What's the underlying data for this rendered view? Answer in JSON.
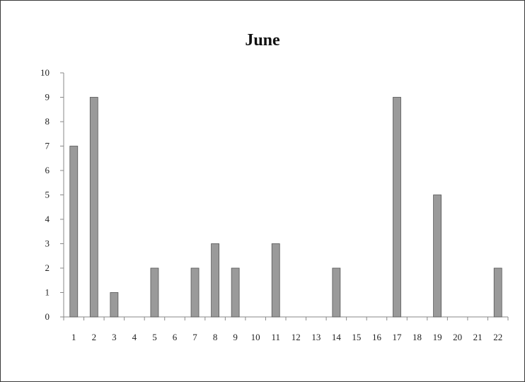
{
  "chart_data": {
    "type": "bar",
    "title": "June",
    "xlabel": "",
    "ylabel": "",
    "categories": [
      "1",
      "2",
      "3",
      "4",
      "5",
      "6",
      "7",
      "8",
      "9",
      "10",
      "11",
      "12",
      "13",
      "14",
      "15",
      "16",
      "17",
      "18",
      "19",
      "20",
      "21",
      "22"
    ],
    "values": [
      7,
      9,
      1,
      0,
      2,
      0,
      2,
      3,
      2,
      0,
      3,
      0,
      0,
      2,
      0,
      0,
      9,
      0,
      5,
      0,
      0,
      2
    ],
    "ylim": [
      0,
      10
    ],
    "yticks": [
      "0",
      "1",
      "2",
      "3",
      "4",
      "5",
      "6",
      "7",
      "8",
      "9",
      "10"
    ],
    "grid": false,
    "legend": "none",
    "colors": {
      "bar": "#9a9a9a",
      "bar_edge": "#555555",
      "axis": "#888888"
    }
  }
}
